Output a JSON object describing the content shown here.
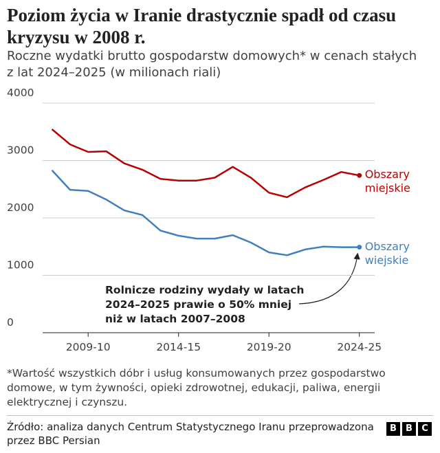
{
  "chart_data": {
    "type": "line",
    "title": "Poziom życia w Iranie drastycznie spadł od czasu kryzysu w 2008 r.",
    "subtitle": "Roczne wydatki brutto gospodarstw domowych* w cenach stałych z lat 2024–2025 (w milionach riali)",
    "categories": [
      null,
      null,
      "2009-10",
      null,
      null,
      null,
      null,
      "2014-15",
      null,
      null,
      null,
      null,
      "2019-20",
      null,
      null,
      null,
      null,
      "2024-25"
    ],
    "series": [
      {
        "name": "Obszary miejskie",
        "color": "#b80000",
        "values": [
          3545,
          3280,
          3150,
          3160,
          2950,
          2840,
          2680,
          2650,
          2650,
          2700,
          2890,
          2700,
          2440,
          2360,
          2530,
          2660,
          2800,
          2740
        ]
      },
      {
        "name": "Obszary wiejskie",
        "color": "#3f7fbf",
        "values": [
          2830,
          2490,
          2470,
          2320,
          2130,
          2050,
          1780,
          1690,
          1640,
          1640,
          1700,
          1570,
          1400,
          1350,
          1450,
          1500,
          1490,
          1490
        ]
      }
    ],
    "ylim": [
      0,
      4000
    ],
    "yticks": [
      0,
      1000,
      2000,
      3000,
      4000
    ],
    "grid": true,
    "annotation": "Rolnicze rodziny wydały w latach 2024–2025 prawie o 50% mniej niż w latach 2007–2008",
    "footnote": "*Wartość wszystkich dóbr i usług konsumowanych przez gospodarstwo domowe, w tym żywności, opieki zdrowotnej, edukacji, paliwa, energii elektrycznej i czynszu.",
    "source": "Źródło: analiza danych Centrum Statystycznego Iranu przeprowadzona przez BBC Persian",
    "logo": [
      "B",
      "B",
      "C"
    ]
  }
}
